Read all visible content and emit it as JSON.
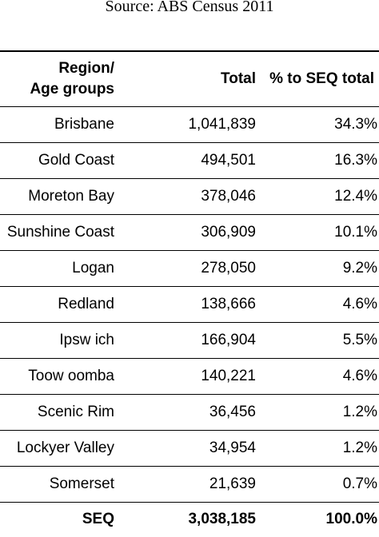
{
  "source": "Source: ABS Census 2011",
  "table": {
    "headers": {
      "region_line1": "Region/",
      "region_line2": "Age groups",
      "total": "Total",
      "pct": "% to SEQ total"
    },
    "rows": [
      {
        "region": "Brisbane",
        "total": "1,041,839",
        "pct": "34.3%"
      },
      {
        "region": "Gold Coast",
        "total": "494,501",
        "pct": "16.3%"
      },
      {
        "region": "Moreton Bay",
        "total": "378,046",
        "pct": "12.4%"
      },
      {
        "region": "Sunshine Coast",
        "total": "306,909",
        "pct": "10.1%"
      },
      {
        "region": "Logan",
        "total": "278,050",
        "pct": "9.2%"
      },
      {
        "region": "Redland",
        "total": "138,666",
        "pct": "4.6%"
      },
      {
        "region": "Ipsw ich",
        "total": "166,904",
        "pct": "5.5%"
      },
      {
        "region": "Toow oomba",
        "total": "140,221",
        "pct": "4.6%"
      },
      {
        "region": "Scenic Rim",
        "total": "36,456",
        "pct": "1.2%"
      },
      {
        "region": "Lockyer Valley",
        "total": "34,954",
        "pct": "1.2%"
      },
      {
        "region": "Somerset",
        "total": "21,639",
        "pct": "0.7%"
      }
    ],
    "summary": {
      "region": "SEQ",
      "total": "3,038,185",
      "pct": "100.0%"
    }
  }
}
